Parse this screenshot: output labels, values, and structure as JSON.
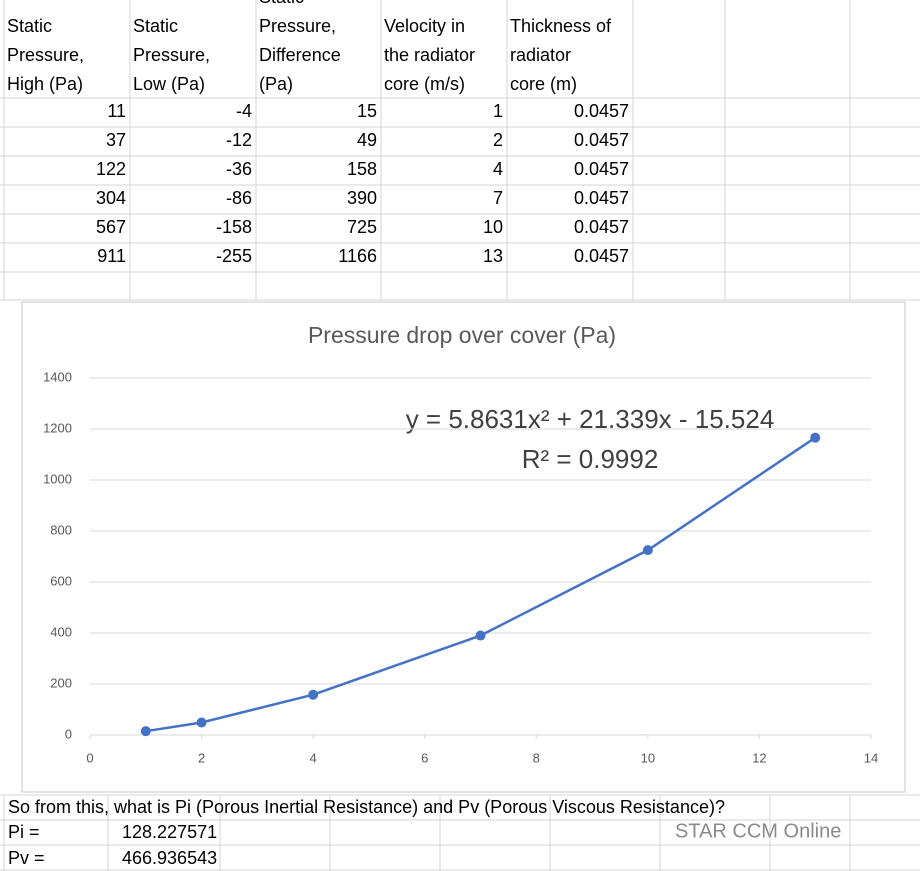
{
  "table": {
    "headers": [
      [
        "Static",
        "Pressure,",
        "High (Pa)"
      ],
      [
        "Static",
        "Pressure,",
        "Low (Pa)"
      ],
      [
        "Static",
        "Pressure,",
        "Difference",
        "(Pa)"
      ],
      [
        "Velocity in",
        "the radiator",
        "core (m/s)"
      ],
      [
        "Thickness of",
        "radiator",
        "core (m)"
      ]
    ],
    "rows": [
      [
        11,
        -4,
        15,
        1,
        0.0457
      ],
      [
        37,
        -12,
        49,
        2,
        0.0457
      ],
      [
        122,
        -36,
        158,
        4,
        0.0457
      ],
      [
        304,
        -86,
        390,
        7,
        0.0457
      ],
      [
        567,
        -158,
        725,
        10,
        0.0457
      ],
      [
        911,
        -255,
        1166,
        13,
        0.0457
      ]
    ]
  },
  "chart_data": {
    "type": "scatter",
    "title": "Pressure drop over cover (Pa)",
    "annotations": [
      "y = 5.8631x² + 21.339x - 15.524",
      "R² = 0.9992"
    ],
    "x": [
      1,
      2,
      4,
      7,
      10,
      13
    ],
    "series": [
      {
        "name": "Pressure drop over cover (Pa)",
        "color": "#4472c4",
        "values": [
          15,
          49,
          158,
          390,
          725,
          1166
        ]
      }
    ],
    "xlim": [
      0,
      14
    ],
    "xticks": [
      0,
      2,
      4,
      6,
      8,
      10,
      12,
      14
    ],
    "ylim": [
      0,
      1400
    ],
    "yticks": [
      0,
      200,
      400,
      600,
      800,
      1000,
      1200,
      1400
    ],
    "grid": true
  },
  "notes": {
    "question": "So from this, what is Pi (Porous Inertial Resistance) and Pv (Porous Viscous Resistance)?",
    "results": [
      [
        "Pi =",
        128.227571
      ],
      [
        "Pv =",
        466.936543
      ]
    ],
    "watermark": "STAR CCM Online"
  }
}
